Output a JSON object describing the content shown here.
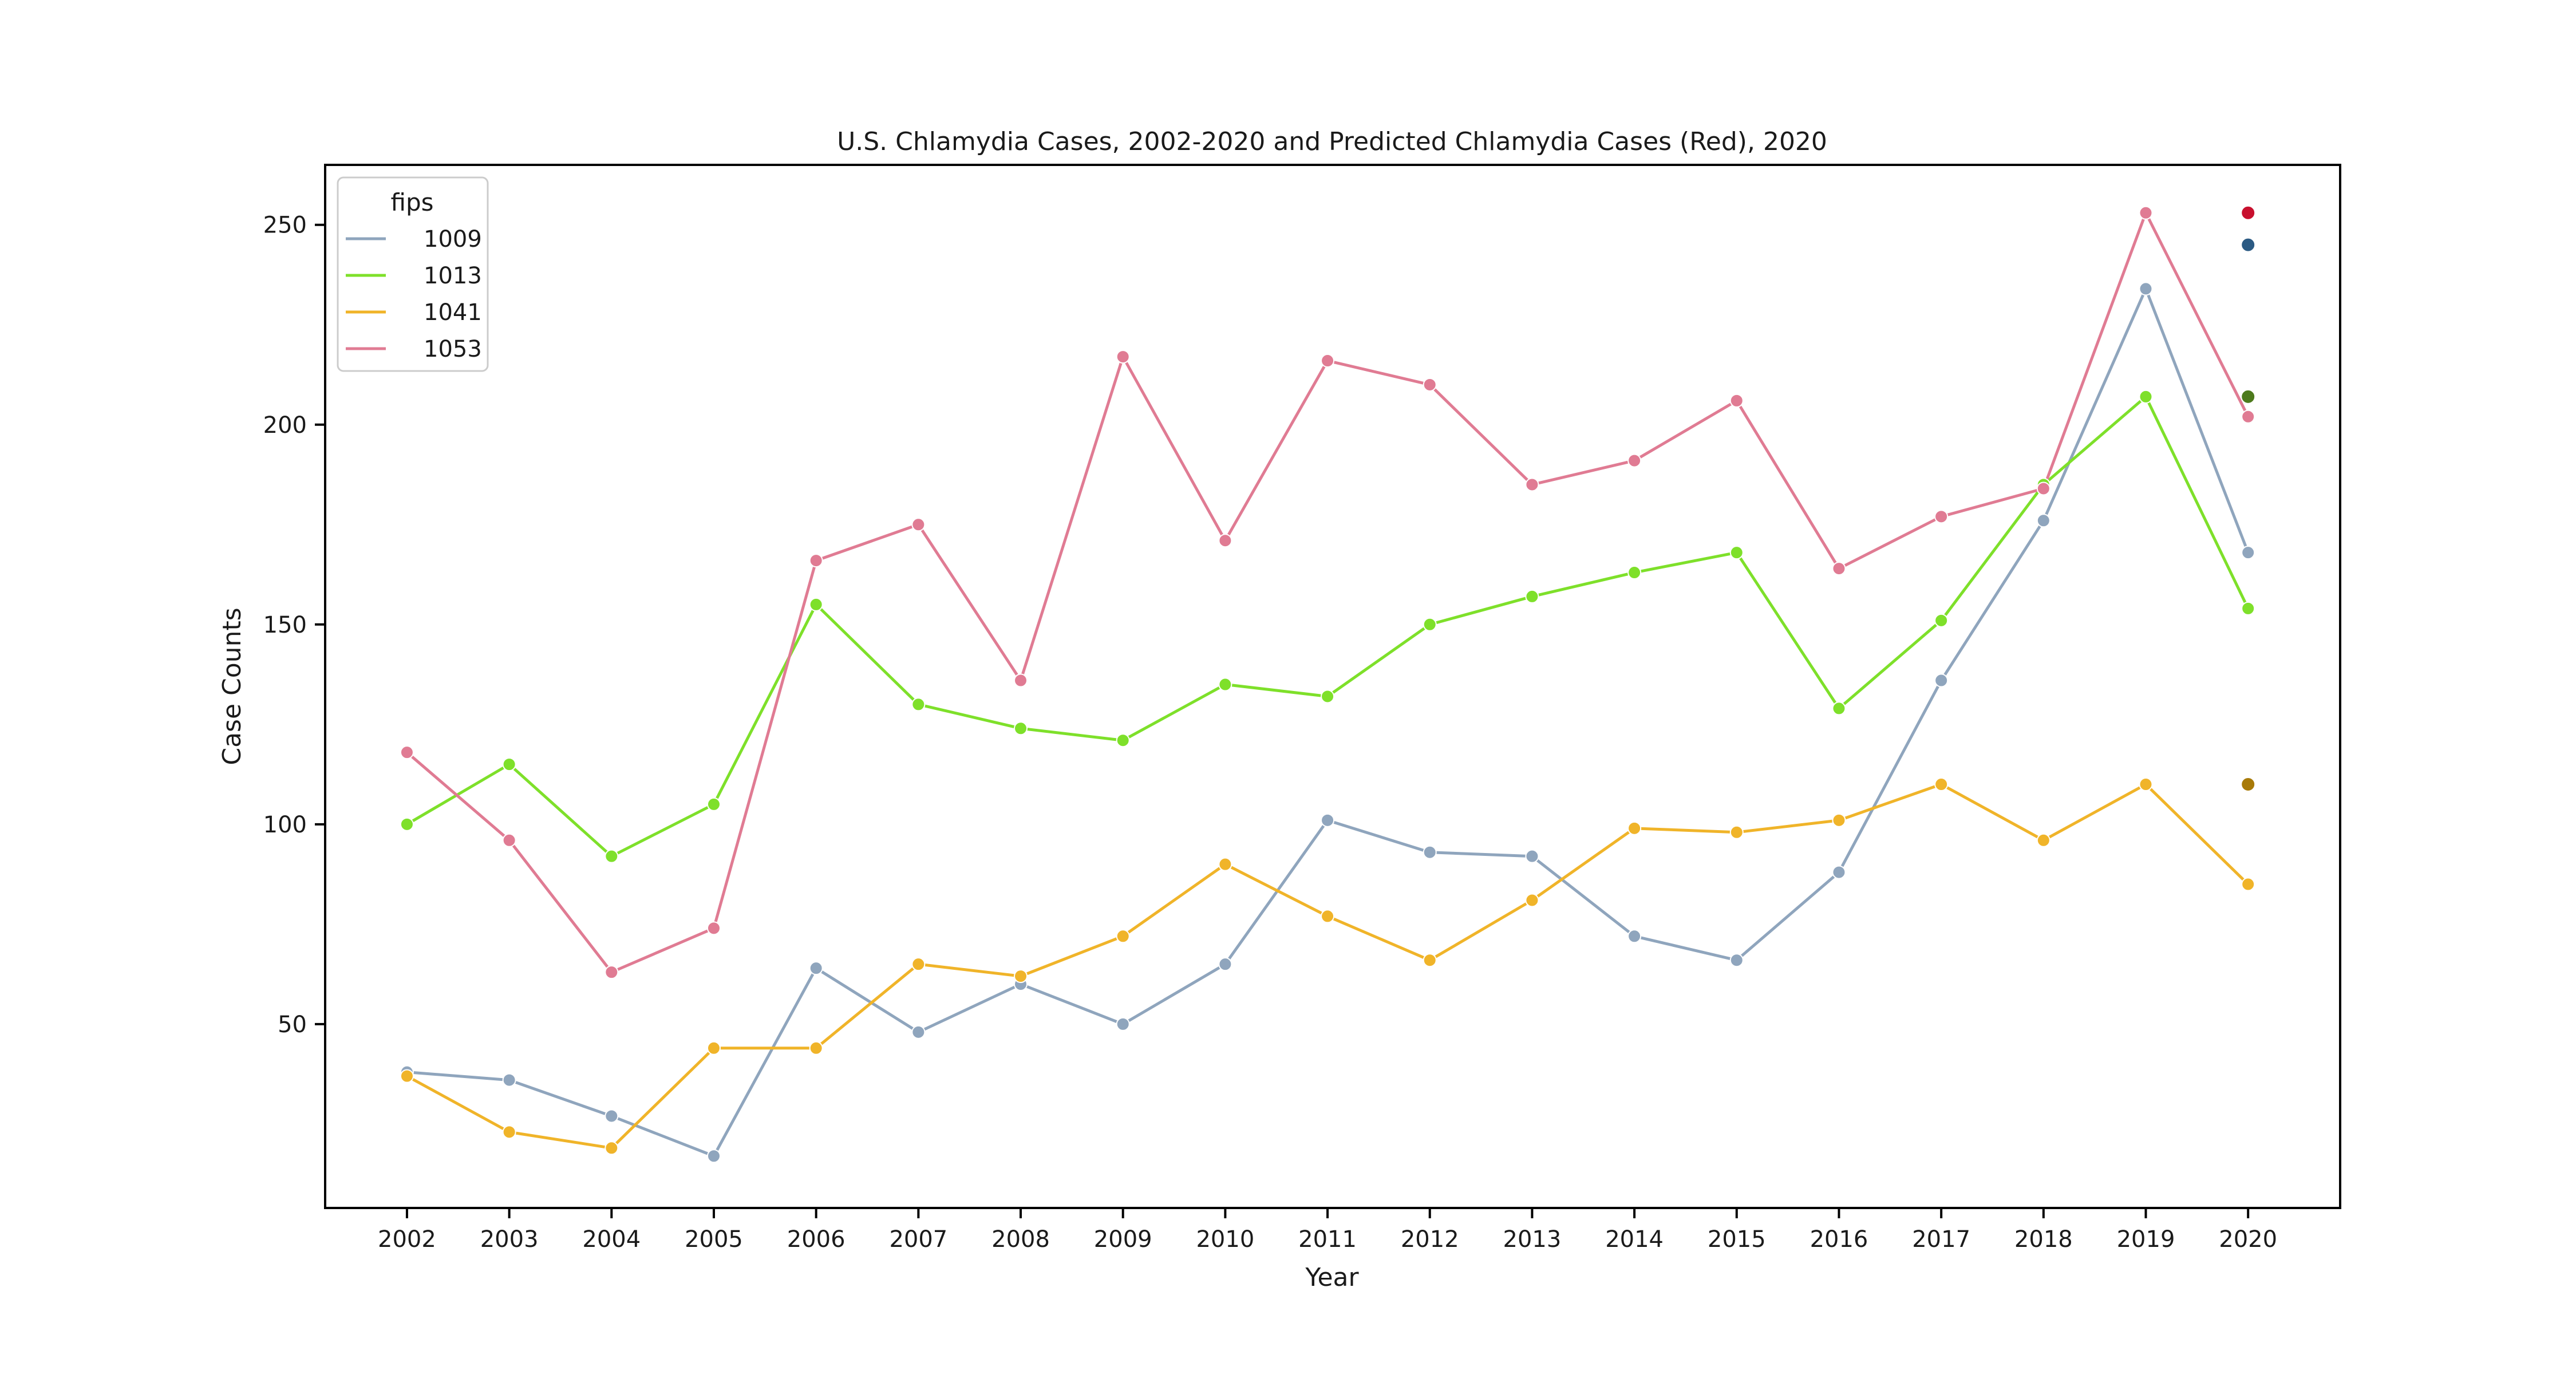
{
  "chart_data": {
    "type": "line",
    "title": "U.S. Chlamydia Cases, 2002-2020 and Predicted Chlamydia Cases (Red), 2020",
    "xlabel": "Year",
    "ylabel": "Case Counts",
    "x": [
      2002,
      2003,
      2004,
      2005,
      2006,
      2007,
      2008,
      2009,
      2010,
      2011,
      2012,
      2013,
      2014,
      2015,
      2016,
      2017,
      2018,
      2019,
      2020
    ],
    "x_tick_labels": [
      "2002",
      "2003",
      "2004",
      "2005",
      "2006",
      "2007",
      "2008",
      "2009",
      "2010",
      "2011",
      "2012",
      "2013",
      "2014",
      "2015",
      "2016",
      "2017",
      "2018",
      "2019",
      "2020"
    ],
    "xlim": [
      2001.2,
      2020.9
    ],
    "ylim": [
      4,
      265
    ],
    "y_ticks": [
      50,
      100,
      150,
      200,
      250
    ],
    "y_tick_labels": [
      "50",
      "100",
      "150",
      "200",
      "250"
    ],
    "grid": false,
    "legend": {
      "title": "fips",
      "placement": "top-left"
    },
    "series": [
      {
        "name": "1009",
        "color": "#8fa5bd",
        "values": [
          38,
          36,
          27,
          17,
          64,
          48,
          60,
          50,
          65,
          101,
          93,
          92,
          72,
          66,
          88,
          136,
          176,
          234,
          168
        ]
      },
      {
        "name": "1013",
        "color": "#7ee02a",
        "values": [
          100,
          115,
          92,
          105,
          155,
          130,
          124,
          121,
          135,
          132,
          150,
          157,
          163,
          168,
          129,
          151,
          185,
          207,
          154
        ]
      },
      {
        "name": "1041",
        "color": "#f0b429",
        "values": [
          37,
          23,
          19,
          44,
          44,
          65,
          62,
          72,
          90,
          77,
          66,
          81,
          99,
          98,
          101,
          110,
          96,
          110,
          85
        ]
      },
      {
        "name": "1053",
        "color": "#e07b93",
        "values": [
          118,
          96,
          63,
          74,
          166,
          175,
          136,
          217,
          171,
          216,
          210,
          185,
          191,
          206,
          164,
          177,
          184,
          253,
          202
        ]
      }
    ],
    "predicted_2020": [
      {
        "x": 2020,
        "y": 253,
        "color": "#c8102e"
      },
      {
        "x": 2020,
        "y": 245,
        "color": "#2b5a83"
      },
      {
        "x": 2020,
        "y": 207,
        "color": "#4d7a1c"
      },
      {
        "x": 2020,
        "y": 110,
        "color": "#a87a08"
      }
    ]
  }
}
